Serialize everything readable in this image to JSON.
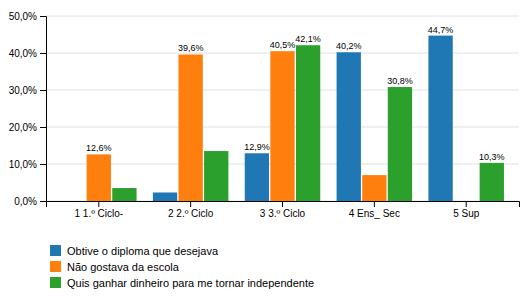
{
  "chart_data": {
    "type": "bar",
    "categories": [
      "1 1.º Ciclo-",
      "2 2.º Ciclo",
      "3 3.º Ciclo",
      "4 Ens_ Sec",
      "5 Sup"
    ],
    "series": [
      {
        "name": "Obtive o diploma que desejava",
        "values": [
          0.0,
          2.3,
          12.9,
          40.2,
          44.7
        ],
        "value_labels": [
          null,
          null,
          "12,9%",
          "40,2%",
          "44,7%"
        ]
      },
      {
        "name": "Não gostava da escola",
        "values": [
          12.6,
          39.6,
          40.5,
          7.0,
          0.0
        ],
        "value_labels": [
          "12,6%",
          "39,6%",
          "40,5%",
          null,
          null
        ]
      },
      {
        "name": "Quis ganhar dinheiro para me tornar independente",
        "values": [
          3.5,
          13.5,
          42.1,
          30.8,
          10.3
        ],
        "value_labels": [
          null,
          null,
          "42,1%",
          "30,8%",
          "10,3%"
        ]
      }
    ],
    "ylim": [
      0,
      50
    ],
    "yticks": [
      {
        "value": 0,
        "label": "0,0%"
      },
      {
        "value": 10,
        "label": "10,0%"
      },
      {
        "value": 20,
        "label": "20,0%"
      },
      {
        "value": 30,
        "label": "30,0%"
      },
      {
        "value": 40,
        "label": "40,0%"
      },
      {
        "value": 50,
        "label": "50,0%"
      }
    ],
    "grid": true,
    "data_labels": true,
    "legend": "bottom"
  }
}
